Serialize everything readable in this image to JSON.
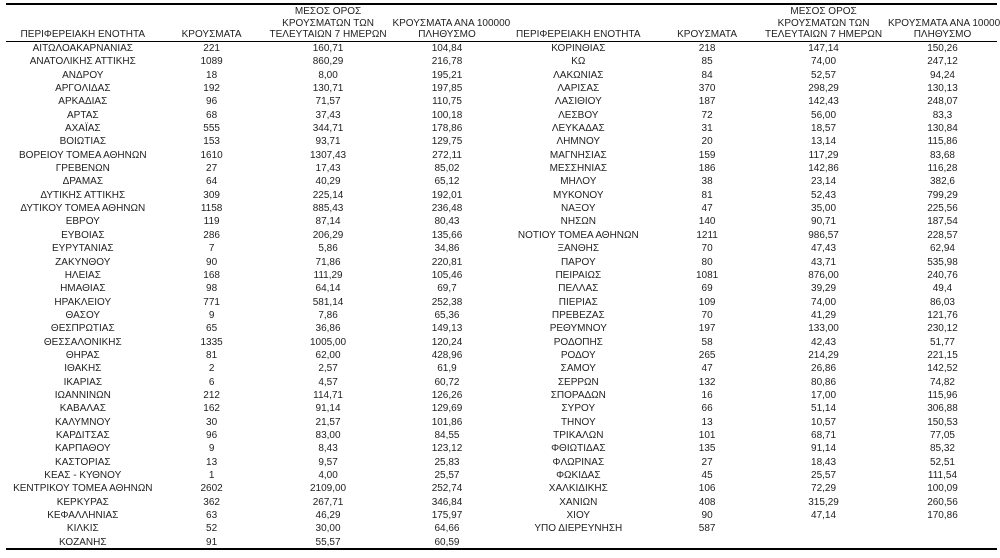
{
  "document": {
    "type": "covid-cases-by-regional-unit-table",
    "language": "el",
    "text_color": "#1f1f1f",
    "line_color": "#000000",
    "background_color": "#ffffff"
  },
  "columns": [
    {
      "key": "region",
      "lines": [
        "ΠΕΡΙΦΕΡΕΙΑΚΗ ΕΝΟΤΗΤΑ"
      ]
    },
    {
      "key": "cases",
      "lines": [
        "ΚΡΟΥΣΜΑΤΑ"
      ]
    },
    {
      "key": "avg7day",
      "lines": [
        "ΜΕΣΟΣ ΟΡΟΣ",
        "ΚΡΟΥΣΜΑΤΩΝ ΤΩΝ",
        "ΤΕΛΕΥΤΑΙΩΝ 7 ΗΜΕΡΩΝ"
      ]
    },
    {
      "key": "per100k",
      "lines": [
        "ΚΡΟΥΣΜΑΤΑ ΑΝΑ 100000",
        "ΠΛΗΘΥΣΜΟ"
      ]
    }
  ],
  "tables": {
    "left": {
      "rows": [
        [
          "ΑΙΤΩΛΟΑΚΑΡΝΑΝΙΑΣ",
          "221",
          "160,71",
          "104,84"
        ],
        [
          "ΑΝΑΤΟΛΙΚΗΣ ΑΤΤΙΚΗΣ",
          "1089",
          "860,29",
          "216,78"
        ],
        [
          "ΑΝΔΡΟΥ",
          "18",
          "8,00",
          "195,21"
        ],
        [
          "ΑΡΓΟΛΙΔΑΣ",
          "192",
          "130,71",
          "197,85"
        ],
        [
          "ΑΡΚΑΔΙΑΣ",
          "96",
          "71,57",
          "110,75"
        ],
        [
          "ΑΡΤΑΣ",
          "68",
          "37,43",
          "100,18"
        ],
        [
          "ΑΧΑΪΑΣ",
          "555",
          "344,71",
          "178,86"
        ],
        [
          "ΒΟΙΩΤΙΑΣ",
          "153",
          "93,71",
          "129,75"
        ],
        [
          "ΒΟΡΕΙΟΥ ΤΟΜΕΑ ΑΘΗΝΩΝ",
          "1610",
          "1307,43",
          "272,11"
        ],
        [
          "ΓΡΕΒΕΝΩΝ",
          "27",
          "17,43",
          "85,02"
        ],
        [
          "ΔΡΑΜΑΣ",
          "64",
          "40,29",
          "65,12"
        ],
        [
          "ΔΥΤΙΚΗΣ ΑΤΤΙΚΗΣ",
          "309",
          "225,14",
          "192,01"
        ],
        [
          "ΔΥΤΙΚΟΥ ΤΟΜΕΑ ΑΘΗΝΩΝ",
          "1158",
          "885,43",
          "236,48"
        ],
        [
          "ΕΒΡΟΥ",
          "119",
          "87,14",
          "80,43"
        ],
        [
          "ΕΥΒΟΙΑΣ",
          "286",
          "206,29",
          "135,66"
        ],
        [
          "ΕΥΡΥΤΑΝΙΑΣ",
          "7",
          "5,86",
          "34,86"
        ],
        [
          "ΖΑΚΥΝΘΟΥ",
          "90",
          "71,86",
          "220,81"
        ],
        [
          "ΗΛΕΙΑΣ",
          "168",
          "111,29",
          "105,46"
        ],
        [
          "ΗΜΑΘΙΑΣ",
          "98",
          "64,14",
          "69,7"
        ],
        [
          "ΗΡΑΚΛΕΙΟΥ",
          "771",
          "581,14",
          "252,38"
        ],
        [
          "ΘΑΣΟΥ",
          "9",
          "7,86",
          "65,36"
        ],
        [
          "ΘΕΣΠΡΩΤΙΑΣ",
          "65",
          "36,86",
          "149,13"
        ],
        [
          "ΘΕΣΣΑΛΟΝΙΚΗΣ",
          "1335",
          "1005,00",
          "120,24"
        ],
        [
          "ΘΗΡΑΣ",
          "81",
          "62,00",
          "428,96"
        ],
        [
          "ΙΘΑΚΗΣ",
          "2",
          "2,57",
          "61,9"
        ],
        [
          "ΙΚΑΡΙΑΣ",
          "6",
          "4,57",
          "60,72"
        ],
        [
          "ΙΩΑΝΝΙΝΩΝ",
          "212",
          "114,71",
          "126,26"
        ],
        [
          "ΚΑΒΑΛΑΣ",
          "162",
          "91,14",
          "129,69"
        ],
        [
          "ΚΑΛΥΜΝΟΥ",
          "30",
          "21,57",
          "101,86"
        ],
        [
          "ΚΑΡΔΙΤΣΑΣ",
          "96",
          "83,00",
          "84,55"
        ],
        [
          "ΚΑΡΠΑΘΟΥ",
          "9",
          "8,43",
          "123,12"
        ],
        [
          "ΚΑΣΤΟΡΙΑΣ",
          "13",
          "9,57",
          "25,83"
        ],
        [
          "ΚΕΑΣ - ΚΥΘΝΟΥ",
          "1",
          "4,00",
          "25,57"
        ],
        [
          "ΚΕΝΤΡΙΚΟΥ ΤΟΜΕΑ ΑΘΗΝΩΝ",
          "2602",
          "2109,00",
          "252,74"
        ],
        [
          "ΚΕΡΚΥΡΑΣ",
          "362",
          "267,71",
          "346,84"
        ],
        [
          "ΚΕΦΑΛΛΗΝΙΑΣ",
          "63",
          "46,29",
          "175,97"
        ],
        [
          "ΚΙΛΚΙΣ",
          "52",
          "30,00",
          "64,66"
        ],
        [
          "ΚΟΖΑΝΗΣ",
          "91",
          "55,57",
          "60,59"
        ]
      ]
    },
    "right": {
      "rows": [
        [
          "ΚΟΡΙΝΘΙΑΣ",
          "218",
          "147,14",
          "150,26"
        ],
        [
          "ΚΩ",
          "85",
          "74,00",
          "247,12"
        ],
        [
          "ΛΑΚΩΝΙΑΣ",
          "84",
          "52,57",
          "94,24"
        ],
        [
          "ΛΑΡΙΣΑΣ",
          "370",
          "298,29",
          "130,13"
        ],
        [
          "ΛΑΣΙΘΙΟΥ",
          "187",
          "142,43",
          "248,07"
        ],
        [
          "ΛΕΣΒΟΥ",
          "72",
          "56,00",
          "83,3"
        ],
        [
          "ΛΕΥΚΑΔΑΣ",
          "31",
          "18,57",
          "130,84"
        ],
        [
          "ΛΗΜΝΟΥ",
          "20",
          "13,14",
          "115,86"
        ],
        [
          "ΜΑΓΝΗΣΙΑΣ",
          "159",
          "117,29",
          "83,68"
        ],
        [
          "ΜΕΣΣΗΝΙΑΣ",
          "186",
          "142,86",
          "116,28"
        ],
        [
          "ΜΗΛΟΥ",
          "38",
          "23,14",
          "382,6"
        ],
        [
          "ΜΥΚΟΝΟΥ",
          "81",
          "52,43",
          "799,29"
        ],
        [
          "ΝΑΞΟΥ",
          "47",
          "35,00",
          "225,56"
        ],
        [
          "ΝΗΣΩΝ",
          "140",
          "90,71",
          "187,54"
        ],
        [
          "ΝΟΤΙΟΥ ΤΟΜΕΑ ΑΘΗΝΩΝ",
          "1211",
          "986,57",
          "228,57"
        ],
        [
          "ΞΑΝΘΗΣ",
          "70",
          "47,43",
          "62,94"
        ],
        [
          "ΠΑΡΟΥ",
          "80",
          "43,71",
          "535,98"
        ],
        [
          "ΠΕΙΡΑΙΩΣ",
          "1081",
          "876,00",
          "240,76"
        ],
        [
          "ΠΕΛΛΑΣ",
          "69",
          "39,29",
          "49,4"
        ],
        [
          "ΠΙΕΡΙΑΣ",
          "109",
          "74,00",
          "86,03"
        ],
        [
          "ΠΡΕΒΕΖΑΣ",
          "70",
          "41,29",
          "121,76"
        ],
        [
          "ΡΕΘΥΜΝΟΥ",
          "197",
          "133,00",
          "230,12"
        ],
        [
          "ΡΟΔΟΠΗΣ",
          "58",
          "42,43",
          "51,77"
        ],
        [
          "ΡΟΔΟΥ",
          "265",
          "214,29",
          "221,15"
        ],
        [
          "ΣΑΜΟΥ",
          "47",
          "26,86",
          "142,52"
        ],
        [
          "ΣΕΡΡΩΝ",
          "132",
          "80,86",
          "74,82"
        ],
        [
          "ΣΠΟΡΑΔΩΝ",
          "16",
          "17,00",
          "115,96"
        ],
        [
          "ΣΥΡΟΥ",
          "66",
          "51,14",
          "306,88"
        ],
        [
          "ΤΗΝΟΥ",
          "13",
          "10,57",
          "150,53"
        ],
        [
          "ΤΡΙΚΑΛΩΝ",
          "101",
          "68,71",
          "77,05"
        ],
        [
          "ΦΘΙΩΤΙΔΑΣ",
          "135",
          "91,14",
          "85,32"
        ],
        [
          "ΦΛΩΡΙΝΑΣ",
          "27",
          "18,43",
          "52,51"
        ],
        [
          "ΦΩΚΙΔΑΣ",
          "45",
          "25,57",
          "111,54"
        ],
        [
          "ΧΑΛΚΙΔΙΚΗΣ",
          "106",
          "72,29",
          "100,09"
        ],
        [
          "ΧΑΝΙΩΝ",
          "408",
          "315,29",
          "260,56"
        ],
        [
          "ΧΙΟΥ",
          "90",
          "47,14",
          "170,86"
        ],
        [
          "ΥΠΟ ΔΙΕΡΕΥΝΗΣΗ",
          "587",
          "",
          ""
        ]
      ]
    }
  }
}
